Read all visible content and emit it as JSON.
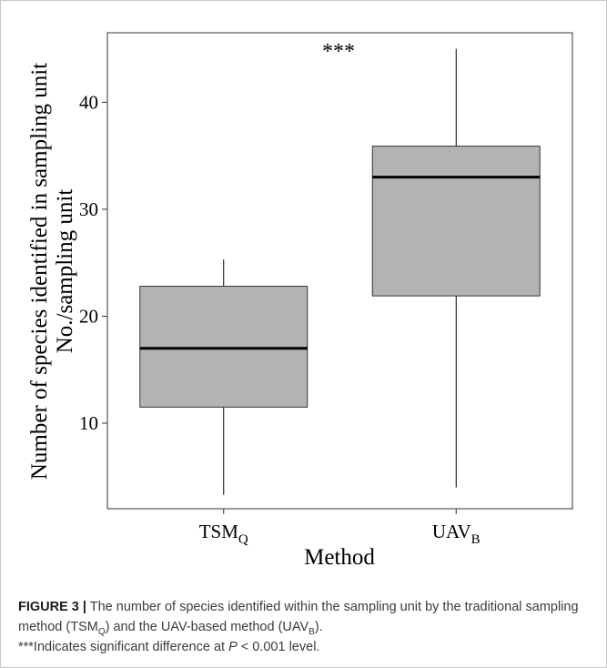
{
  "chart_data": {
    "type": "box",
    "xlabel": "Method",
    "ylabel_line1": "Number of species identified in sampling unit",
    "ylabel_line2": "No./sampling unit",
    "ylim": [
      2,
      46.5
    ],
    "yticks": [
      10,
      20,
      30,
      40
    ],
    "grid": false,
    "annotation": "***",
    "categories": [
      {
        "base": "TSM",
        "sub": "Q"
      },
      {
        "base": "UAV",
        "sub": "B"
      }
    ],
    "boxes": [
      {
        "whisker_low": 3.3,
        "q1": 11.5,
        "median": 17.0,
        "q3": 22.8,
        "whisker_high": 25.3
      },
      {
        "whisker_low": 4.0,
        "q1": 21.9,
        "median": 33.0,
        "q3": 35.9,
        "whisker_high": 45.0
      }
    ],
    "box_fill": "#b3b3b3",
    "line_color": "#000000"
  },
  "caption": {
    "label": "FIGURE 3 |",
    "text_1": " The number of species identified within the sampling unit by the traditional sampling method (TSM",
    "sub_1": "Q",
    "text_2": ") and the UAV-based method (UAV",
    "sub_2": "B",
    "text_3": ").",
    "text_4": "***Indicates significant difference at ",
    "italic_p": "P",
    "text_5": " < 0.001 level."
  }
}
